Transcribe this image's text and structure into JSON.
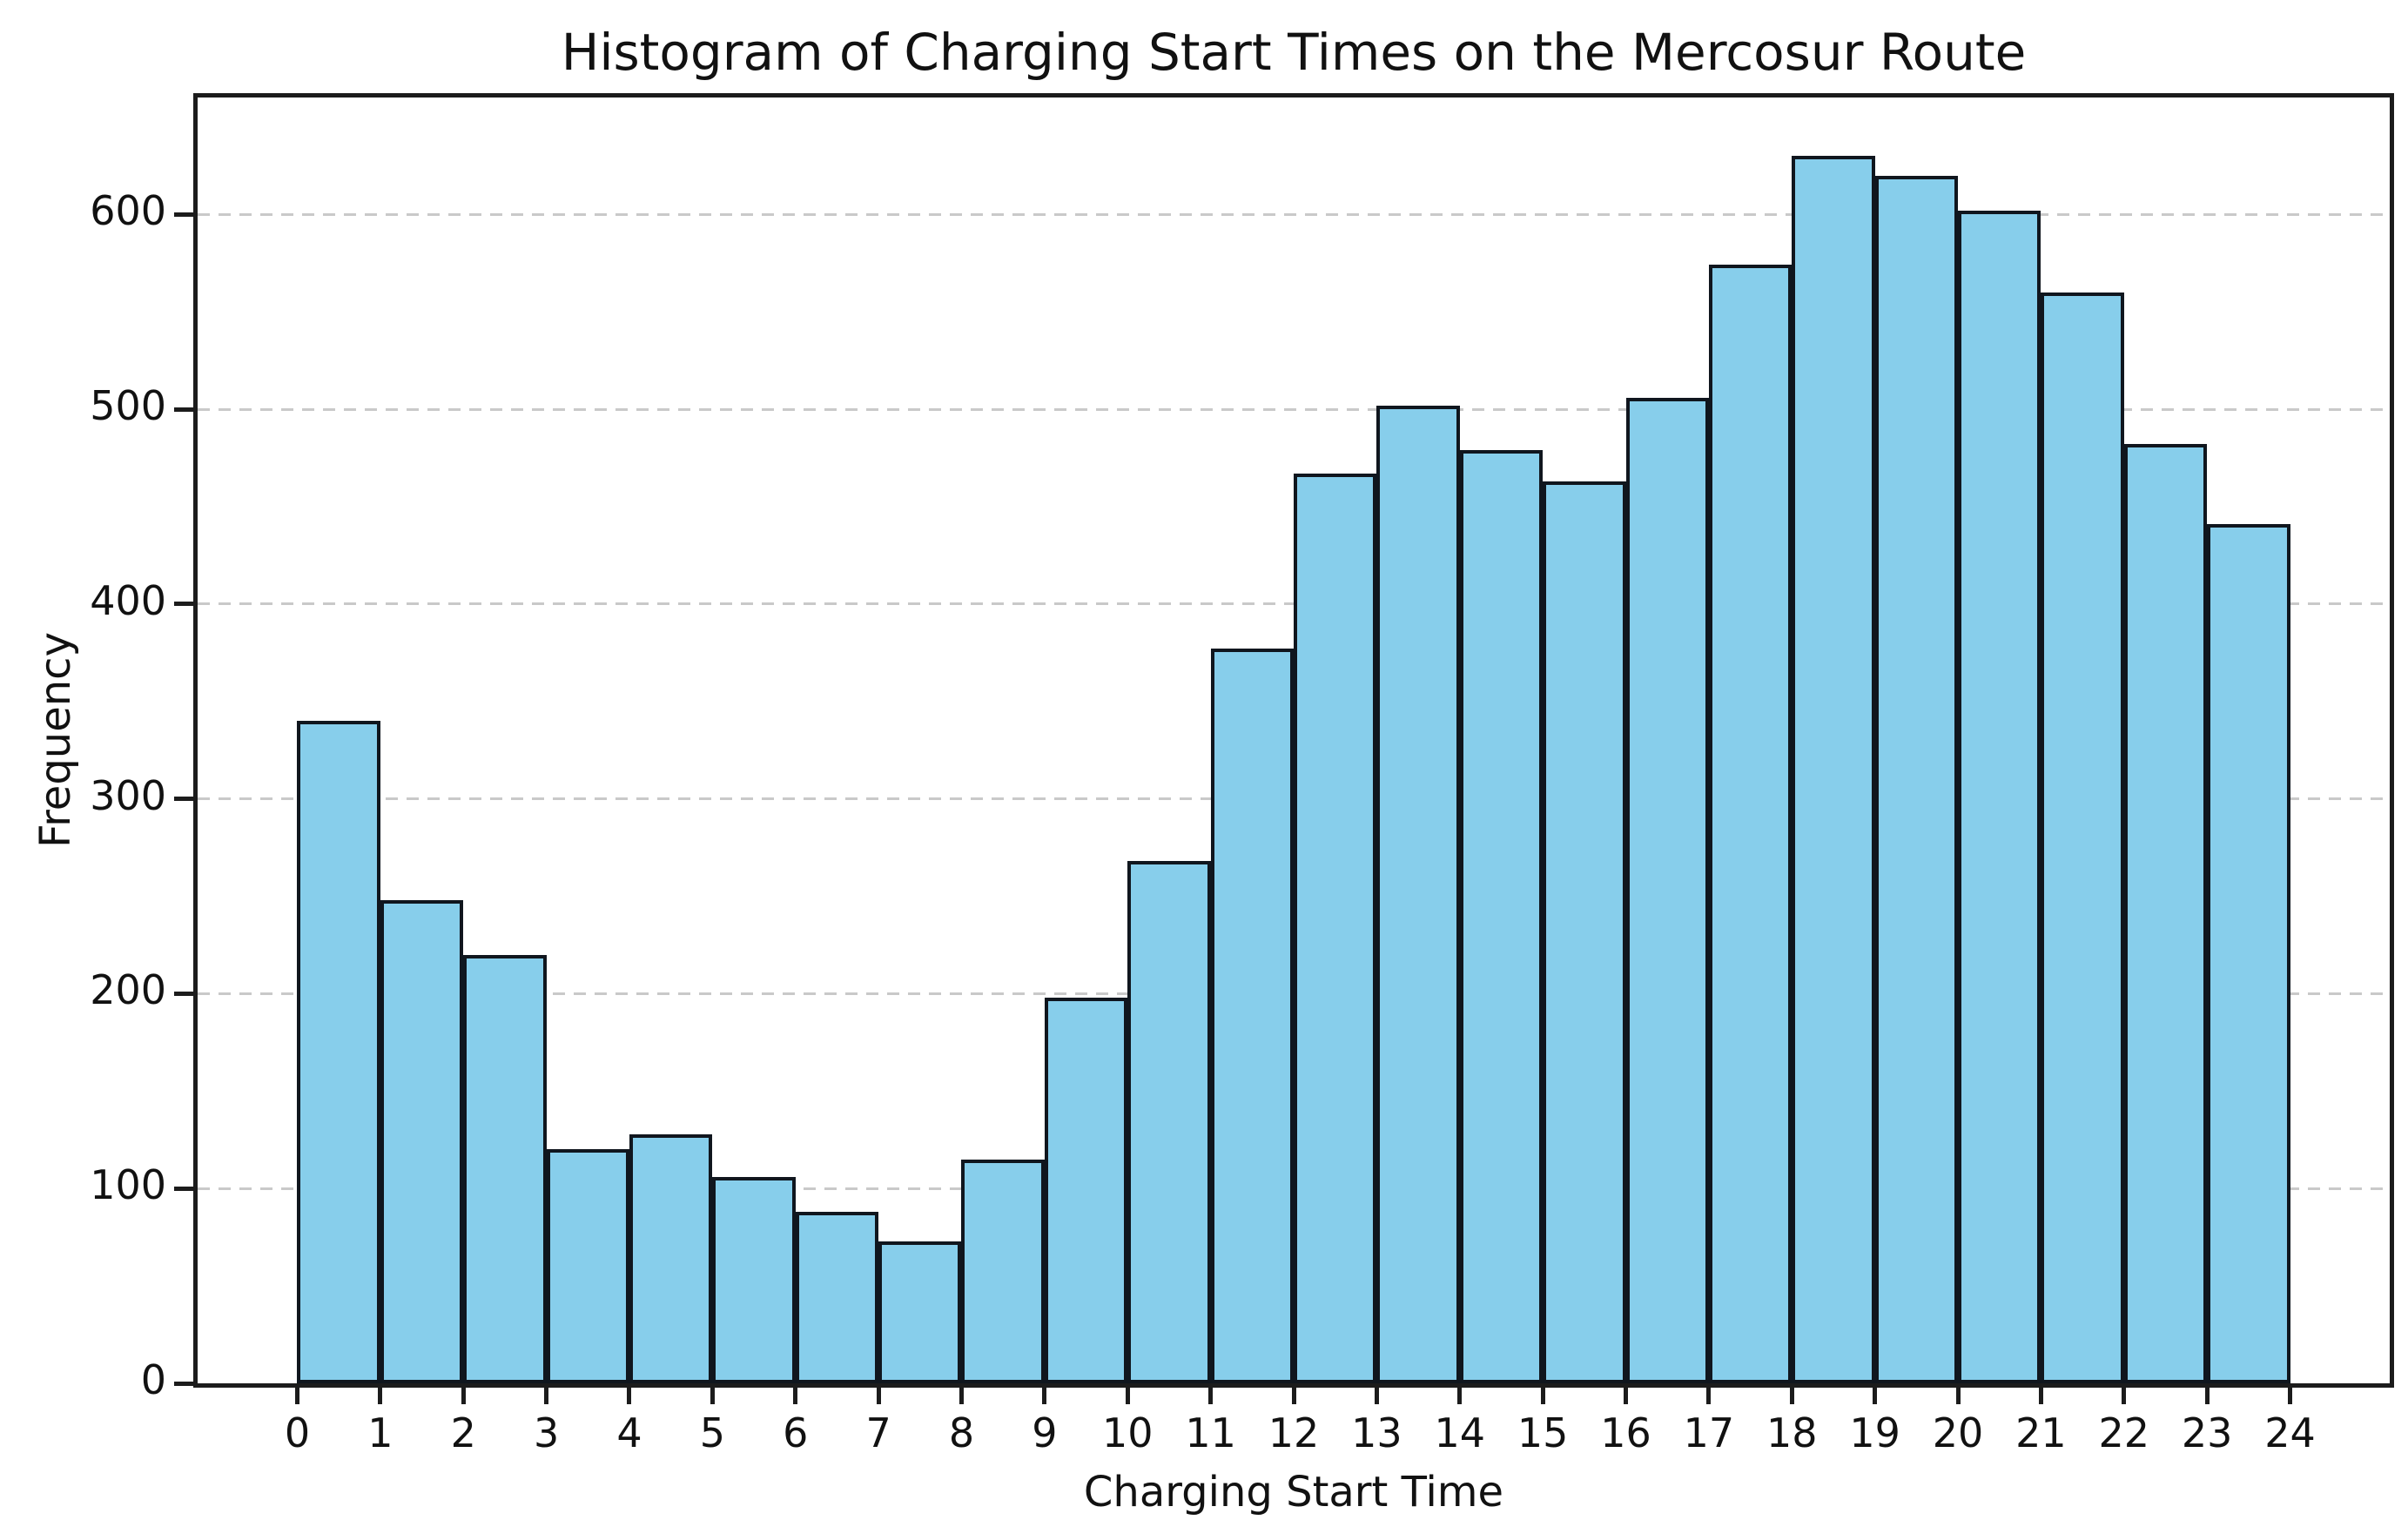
{
  "figure": {
    "title": "Histogram of Charging Start Times on the Mercosur Route",
    "xlabel": "Charging Start Time",
    "ylabel": "Frequency"
  },
  "chart_data": {
    "type": "bar",
    "subtype": "histogram",
    "title": "Histogram of Charging Start Times on the Mercosur Route",
    "xlabel": "Charging Start Time",
    "ylabel": "Frequency",
    "bin_edges": [
      0,
      1,
      2,
      3,
      4,
      5,
      6,
      7,
      8,
      9,
      10,
      11,
      12,
      13,
      14,
      15,
      16,
      17,
      18,
      19,
      20,
      21,
      22,
      23,
      24
    ],
    "values": [
      340,
      248,
      220,
      120,
      128,
      106,
      88,
      73,
      115,
      198,
      268,
      377,
      467,
      502,
      479,
      463,
      506,
      574,
      630,
      620,
      602,
      560,
      482,
      441
    ],
    "x_ticks": [
      0,
      1,
      2,
      3,
      4,
      5,
      6,
      7,
      8,
      9,
      10,
      11,
      12,
      13,
      14,
      15,
      16,
      17,
      18,
      19,
      20,
      21,
      22,
      23,
      24
    ],
    "y_ticks": [
      0,
      100,
      200,
      300,
      400,
      500,
      600
    ],
    "xlim": [
      -1.2,
      25.2
    ],
    "ylim": [
      0,
      660
    ],
    "grid": {
      "axis": "y",
      "style": "dashed",
      "color": "#c9c9c9"
    },
    "legend": null,
    "colors": {
      "bar_fill": "#87CEEB",
      "bar_edge": "#10161e",
      "spine": "#1c1c1c",
      "text": "#111111"
    }
  }
}
